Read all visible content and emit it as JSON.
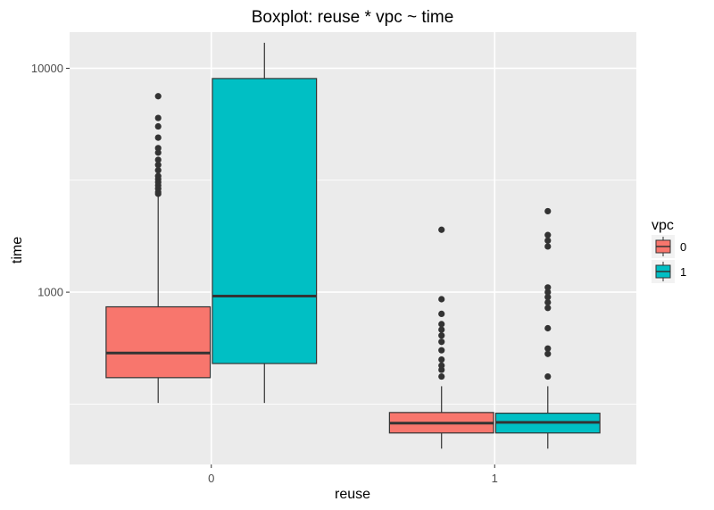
{
  "chart_data": {
    "type": "boxplot",
    "title": "Boxplot: reuse * vpc ~ time",
    "xlabel": "reuse",
    "ylabel": "time",
    "yscale": "log",
    "ylim": [
      170,
      14500
    ],
    "yticks": [
      1000,
      10000
    ],
    "yticklabels": [
      "1000",
      "10000"
    ],
    "categories": [
      "0",
      "1"
    ],
    "grid": true,
    "legend": {
      "title": "vpc",
      "position": "right",
      "entries": [
        {
          "label": "0",
          "color": "#F8766D"
        },
        {
          "label": "1",
          "color": "#00BFC4"
        }
      ]
    },
    "series": [
      {
        "name": "0",
        "color": "#F8766D",
        "boxes": [
          {
            "category": "0",
            "whisker_low": 320,
            "q1": 415,
            "median": 535,
            "q3": 860,
            "whisker_high": 2700,
            "outliers": [
              2750,
              2800,
              2900,
              3000,
              3100,
              3200,
              3300,
              3500,
              3700,
              3900,
              4200,
              4400,
              4900,
              5500,
              6000,
              7500
            ]
          },
          {
            "category": "1",
            "whisker_low": 200,
            "q1": 235,
            "median": 260,
            "q3": 290,
            "whisker_high": 380,
            "outliers": [
              420,
              450,
              470,
              500,
              550,
              600,
              640,
              680,
              720,
              800,
              930,
              1900
            ]
          }
        ]
      },
      {
        "name": "1",
        "color": "#00BFC4",
        "boxes": [
          {
            "category": "0",
            "whisker_low": 320,
            "q1": 480,
            "median": 960,
            "q3": 9000,
            "whisker_high": 13000,
            "outliers": []
          },
          {
            "category": "1",
            "whisker_low": 200,
            "q1": 235,
            "median": 262,
            "q3": 288,
            "whisker_high": 380,
            "outliers": [
              420,
              530,
              560,
              690,
              850,
              900,
              950,
              1000,
              1050,
              1600,
              1700,
              1800,
              2300
            ]
          }
        ]
      }
    ]
  }
}
